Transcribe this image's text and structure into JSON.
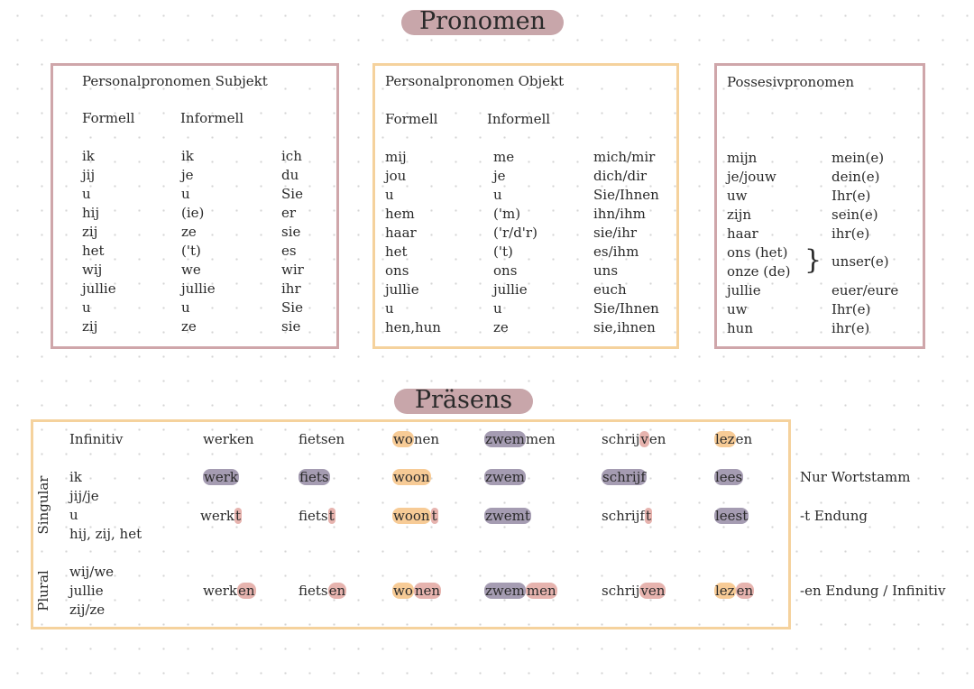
{
  "pronomen_title": "Pronomen",
  "subjekt": {
    "title": "Personalpronomen Subjekt",
    "headers": [
      "Formell",
      "Informell"
    ],
    "rows": [
      [
        "ik",
        "ik",
        "ich"
      ],
      [
        "jij",
        "je",
        "du"
      ],
      [
        "u",
        "u",
        "Sie"
      ],
      [
        "hij",
        "(ie)",
        "er"
      ],
      [
        "zij",
        "ze",
        "sie"
      ],
      [
        "het",
        "('t)",
        "es"
      ],
      [
        "wij",
        "we",
        "wir"
      ],
      [
        "jullie",
        "jullie",
        "ihr"
      ],
      [
        "u",
        "u",
        "Sie"
      ],
      [
        "zij",
        "ze",
        "sie"
      ]
    ]
  },
  "objekt": {
    "title": "Personalpronomen Objekt",
    "headers": [
      "Formell",
      "Informell"
    ],
    "rows": [
      [
        "mij",
        "me",
        "mich/mir"
      ],
      [
        "jou",
        "je",
        "dich/dir"
      ],
      [
        "u",
        "u",
        "Sie/Ihnen"
      ],
      [
        "hem",
        "('m)",
        "ihn/ihm"
      ],
      [
        "haar",
        "('r/d'r)",
        "sie/ihr"
      ],
      [
        "het",
        "('t)",
        "es/ihm"
      ],
      [
        "ons",
        "ons",
        "uns"
      ],
      [
        "jullie",
        "jullie",
        "euch"
      ],
      [
        "u",
        "u",
        "Sie/Ihnen"
      ],
      [
        "hen,hun",
        "ze",
        "sie,ihnen"
      ]
    ]
  },
  "possessiv": {
    "title": "Possesivpronomen",
    "rows": [
      [
        "mijn",
        "mein(e)"
      ],
      [
        "je/jouw",
        "dein(e)"
      ],
      [
        "uw",
        "Ihr(e)"
      ],
      [
        "zijn",
        "sein(e)"
      ],
      [
        "haar",
        "ihr(e)"
      ],
      {
        "forms": [
          "ons (het)",
          "onze (de)"
        ],
        "translation": "unser(e)"
      },
      [
        "jullie",
        "euer/eure"
      ],
      [
        "uw",
        "Ihr(e)"
      ],
      [
        "hun",
        "ihr(e)"
      ]
    ]
  },
  "praesens": {
    "title": "Präsens",
    "infinitiv": {
      "label": "Infinitiv",
      "verbs": [
        [
          {
            "text": "werken"
          }
        ],
        [
          {
            "text": "fietsen"
          }
        ],
        [
          {
            "text": "wo",
            "highlight": "#f7cb96"
          },
          {
            "text": "nen"
          }
        ],
        [
          {
            "text": "zwem",
            "highlight": "#a59cb2"
          },
          {
            "text": "men"
          }
        ],
        [
          {
            "text": "schrij"
          },
          {
            "text": "v",
            "highlight": "#e6b3ae"
          },
          {
            "text": "en"
          }
        ],
        [
          {
            "text": "lez",
            "highlight": "#f7cb96"
          },
          {
            "text": "en"
          }
        ]
      ]
    },
    "singular": {
      "label": "Singular",
      "pronouns": [
        "ik",
        "jij/je",
        "u",
        "hij, zij, het"
      ],
      "rows": [
        {
          "verbs": [
            [
              {
                "text": "werk",
                "highlight": "#a59cb2"
              }
            ],
            [
              {
                "text": "fiets",
                "highlight": "#a59cb2"
              }
            ],
            [
              {
                "text": "woon",
                "highlight": "#f7cb96"
              }
            ],
            [
              {
                "text": "zwem",
                "highlight": "#a59cb2"
              }
            ],
            [
              {
                "text": "schrijf",
                "highlight": "#a59cb2"
              }
            ],
            [
              {
                "text": "lees",
                "highlight": "#a59cb2"
              }
            ]
          ],
          "note": "Nur Wortstamm"
        },
        {
          "verbs": [
            [
              {
                "text": "werk"
              },
              {
                "text": "t",
                "highlight": "#e6b3ae"
              }
            ],
            [
              {
                "text": "fiets"
              },
              {
                "text": "t",
                "highlight": "#e6b3ae"
              }
            ],
            [
              {
                "text": "woon",
                "highlight": "#f7cb96"
              },
              {
                "text": "t",
                "highlight": "#e6b3ae"
              }
            ],
            [
              {
                "text": "zwemt",
                "highlight": "#a59cb2"
              }
            ],
            [
              {
                "text": "schrijf"
              },
              {
                "text": "t",
                "highlight": "#e6b3ae"
              }
            ],
            [
              {
                "text": "leest",
                "highlight": "#a59cb2"
              }
            ]
          ],
          "note": "-t Endung"
        }
      ]
    },
    "plural": {
      "label": "Plural",
      "pronouns": [
        "wij/we",
        "jullie",
        "zij/ze"
      ],
      "verbs": [
        [
          {
            "text": "werk"
          },
          {
            "text": "en",
            "highlight": "#e6b3ae"
          }
        ],
        [
          {
            "text": "fiets"
          },
          {
            "text": "en",
            "highlight": "#e6b3ae"
          }
        ],
        [
          {
            "text": "wo",
            "highlight": "#f7cb96"
          },
          {
            "text": "nen",
            "highlight": "#e6b3ae"
          }
        ],
        [
          {
            "text": "zwem",
            "highlight": "#a59cb2"
          },
          {
            "text": "men",
            "highlight": "#e6b3ae"
          }
        ],
        [
          {
            "text": "schrij"
          },
          {
            "text": "ven",
            "highlight": "#e6b3ae"
          }
        ],
        [
          {
            "text": "lez",
            "highlight": "#f7cb96"
          },
          {
            "text": "en",
            "highlight": "#e6b3ae"
          }
        ]
      ],
      "note": "-en Endung / Infinitiv"
    }
  }
}
